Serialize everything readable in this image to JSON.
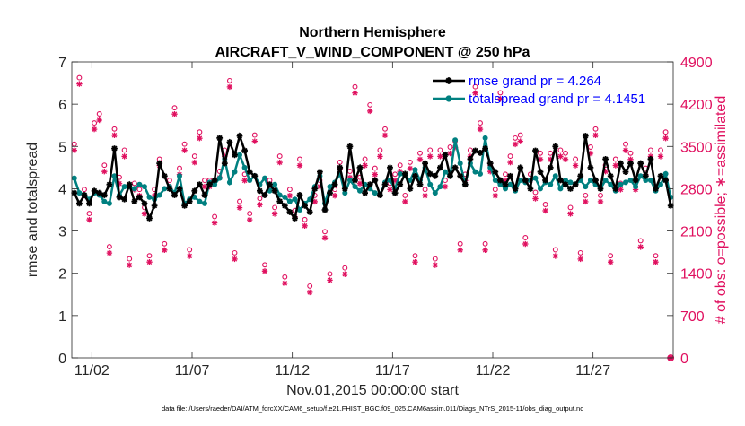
{
  "chart_data": {
    "type": "line",
    "title": "Northern Hemisphere",
    "subtitle": "AIRCRAFT_V_WIND_COMPONENT @ 250 hPa",
    "xlabel": "Nov.01,2015 00:00:00 start",
    "ylabel": "rmse and totalspread",
    "y2label": "# of obs: o=possible; ∗=assimilated",
    "footnote": "data file: /Users/raeder/DAI/ATM_forcXX/CAM6_setup/f.e21.FHIST_BGC.f09_025.CAM6assim.011/Diags_NTrS_2015-11/obs_diag_output.nc",
    "xlim": [
      0.5,
      30.5
    ],
    "xticks": [
      1.5,
      6.5,
      11.5,
      16.5,
      21.5,
      26.5
    ],
    "xtick_labels": [
      "11/02",
      "11/07",
      "11/12",
      "11/17",
      "11/22",
      "11/27"
    ],
    "ylim": [
      0,
      7
    ],
    "yticks": [
      0,
      1,
      2,
      3,
      4,
      5,
      6,
      7
    ],
    "y2lim": [
      0,
      4900
    ],
    "y2ticks": [
      0,
      700,
      1400,
      2100,
      2800,
      3500,
      4200,
      4900
    ],
    "colors": {
      "rmse": "#000000",
      "spread": "#008080",
      "obs": "#e0105f",
      "legend_text": "#0000ff"
    },
    "series": [
      {
        "name": "rmse grand pr = 4.264",
        "style": "black-line-star",
        "x": [
          0.625,
          0.875,
          1.125,
          1.375,
          1.625,
          1.875,
          2.125,
          2.375,
          2.625,
          2.875,
          3.125,
          3.375,
          3.625,
          3.875,
          4.125,
          4.375,
          4.625,
          4.875,
          5.125,
          5.375,
          5.625,
          5.875,
          6.125,
          6.375,
          6.625,
          6.875,
          7.125,
          7.375,
          7.625,
          7.875,
          8.125,
          8.375,
          8.625,
          8.875,
          9.125,
          9.375,
          9.625,
          9.875,
          10.125,
          10.375,
          10.625,
          10.875,
          11.125,
          11.375,
          11.625,
          11.875,
          12.125,
          12.375,
          12.625,
          12.875,
          13.125,
          13.375,
          13.625,
          13.875,
          14.125,
          14.375,
          14.625,
          14.875,
          15.125,
          15.375,
          15.625,
          15.875,
          16.125,
          16.375,
          16.625,
          16.875,
          17.125,
          17.375,
          17.625,
          17.875,
          18.125,
          18.375,
          18.625,
          18.875,
          19.125,
          19.375,
          19.625,
          19.875,
          20.125,
          20.375,
          20.625,
          20.875,
          21.125,
          21.375,
          21.625,
          21.875,
          22.125,
          22.375,
          22.625,
          22.875,
          23.125,
          23.375,
          23.625,
          23.875,
          24.125,
          24.375,
          24.625,
          24.875,
          25.125,
          25.375,
          25.625,
          25.875,
          26.125,
          26.375,
          26.625,
          26.875,
          27.125,
          27.375,
          27.625,
          27.875,
          28.125,
          28.375,
          28.625,
          28.875,
          29.125,
          29.375,
          29.625,
          29.875,
          30.125,
          30.375
        ],
        "values": [
          3.9,
          3.65,
          3.85,
          3.65,
          3.95,
          3.9,
          3.85,
          4.1,
          4.95,
          3.8,
          3.75,
          4.1,
          3.7,
          3.8,
          3.65,
          3.3,
          3.6,
          4.6,
          4.3,
          4.0,
          3.85,
          4.0,
          3.6,
          3.7,
          3.95,
          4.1,
          3.85,
          4.1,
          4.2,
          5.2,
          4.6,
          5.1,
          4.8,
          5.25,
          4.9,
          4.4,
          4.3,
          3.95,
          3.85,
          4.1,
          3.95,
          3.7,
          3.6,
          3.45,
          3.3,
          3.85,
          3.6,
          3.45,
          4.0,
          4.4,
          3.5,
          3.9,
          4.1,
          4.5,
          4.0,
          5.0,
          4.2,
          4.5,
          3.9,
          4.1,
          4.2,
          3.85,
          4.1,
          4.5,
          3.9,
          4.1,
          4.35,
          4.0,
          4.3,
          4.1,
          4.6,
          4.35,
          4.3,
          4.5,
          4.8,
          4.3,
          4.5,
          4.3,
          4.1,
          4.7,
          4.9,
          4.85,
          4.95,
          4.6,
          4.4,
          4.2,
          4.1,
          4.3,
          4.0,
          4.5,
          4.2,
          4.0,
          4.9,
          4.4,
          4.2,
          4.5,
          5.0,
          4.2,
          4.1,
          4.0,
          4.1,
          4.3,
          5.25,
          4.5,
          4.2,
          4.0,
          4.7,
          4.3,
          4.0,
          4.6,
          4.4,
          4.6,
          4.2,
          4.6,
          4.3,
          4.7,
          4.0,
          4.3,
          4.2,
          3.6
        ]
      },
      {
        "name": "totalspread grand pr = 4.1451",
        "style": "teal-line-dot",
        "x": [
          0.625,
          0.875,
          1.125,
          1.375,
          1.625,
          1.875,
          2.125,
          2.375,
          2.625,
          2.875,
          3.125,
          3.375,
          3.625,
          3.875,
          4.125,
          4.375,
          4.625,
          4.875,
          5.125,
          5.375,
          5.625,
          5.875,
          6.125,
          6.375,
          6.625,
          6.875,
          7.125,
          7.375,
          7.625,
          7.875,
          8.125,
          8.375,
          8.625,
          8.875,
          9.125,
          9.375,
          9.625,
          9.875,
          10.125,
          10.375,
          10.625,
          10.875,
          11.125,
          11.375,
          11.625,
          11.875,
          12.125,
          12.375,
          12.625,
          12.875,
          13.125,
          13.375,
          13.625,
          13.875,
          14.125,
          14.375,
          14.625,
          14.875,
          15.125,
          15.375,
          15.625,
          15.875,
          16.125,
          16.375,
          16.625,
          16.875,
          17.125,
          17.375,
          17.625,
          17.875,
          18.125,
          18.375,
          18.625,
          18.875,
          19.125,
          19.375,
          19.625,
          19.875,
          20.125,
          20.375,
          20.625,
          20.875,
          21.125,
          21.375,
          21.625,
          21.875,
          22.125,
          22.375,
          22.625,
          22.875,
          23.125,
          23.375,
          23.625,
          23.875,
          24.125,
          24.375,
          24.625,
          24.875,
          25.125,
          25.375,
          25.625,
          25.875,
          26.125,
          26.375,
          26.625,
          26.875,
          27.125,
          27.375,
          27.625,
          27.875,
          28.125,
          28.375,
          28.625,
          28.875,
          29.125,
          29.375,
          29.625,
          29.875,
          30.125,
          30.375
        ],
        "values": [
          4.25,
          3.9,
          3.85,
          3.75,
          3.9,
          3.85,
          3.7,
          3.65,
          4.3,
          3.85,
          4.05,
          4.05,
          4.0,
          4.1,
          4.05,
          3.8,
          3.75,
          3.85,
          4.0,
          4.05,
          3.9,
          4.3,
          3.65,
          3.75,
          3.8,
          3.7,
          3.65,
          4.15,
          4.1,
          4.25,
          4.7,
          4.15,
          4.4,
          4.8,
          4.5,
          4.2,
          4.3,
          4.1,
          4.25,
          3.95,
          4.1,
          3.85,
          3.8,
          3.7,
          3.75,
          3.5,
          3.65,
          3.75,
          4.05,
          4.3,
          3.65,
          4.05,
          4.15,
          4.35,
          3.9,
          4.2,
          4.05,
          3.95,
          4.1,
          4.0,
          3.9,
          3.85,
          4.15,
          4.2,
          4.0,
          4.35,
          4.3,
          4.2,
          4.45,
          4.2,
          4.5,
          4.1,
          3.9,
          4.05,
          4.4,
          4.3,
          5.15,
          4.6,
          4.1,
          4.6,
          4.4,
          4.35,
          5.2,
          4.5,
          4.2,
          4.1,
          4.0,
          4.1,
          3.95,
          4.2,
          4.15,
          4.2,
          4.25,
          4.0,
          4.15,
          4.1,
          4.3,
          4.0,
          4.2,
          4.15,
          4.1,
          4.2,
          4.05,
          4.2,
          4.1,
          4.0,
          4.2,
          4.1,
          3.95,
          4.1,
          4.15,
          4.2,
          4.05,
          4.3,
          4.2,
          4.2,
          3.95,
          4.1,
          4.35,
          3.8
        ]
      },
      {
        "name": "# of obs (possible = assimilated)",
        "axis": "right",
        "style": "magenta-circle-asterisk",
        "x": [
          0.625,
          0.875,
          1.125,
          1.375,
          1.625,
          1.875,
          2.125,
          2.375,
          2.625,
          2.875,
          3.125,
          3.375,
          3.625,
          3.875,
          4.125,
          4.375,
          4.625,
          4.875,
          5.125,
          5.375,
          5.625,
          5.875,
          6.125,
          6.375,
          6.625,
          6.875,
          7.125,
          7.375,
          7.625,
          7.875,
          8.125,
          8.375,
          8.625,
          8.875,
          9.125,
          9.375,
          9.625,
          9.875,
          10.125,
          10.375,
          10.625,
          10.875,
          11.125,
          11.375,
          11.625,
          11.875,
          12.125,
          12.375,
          12.625,
          12.875,
          13.125,
          13.375,
          13.625,
          13.875,
          14.125,
          14.375,
          14.625,
          14.875,
          15.125,
          15.375,
          15.625,
          15.875,
          16.125,
          16.375,
          16.625,
          16.875,
          17.125,
          17.375,
          17.625,
          17.875,
          18.125,
          18.375,
          18.625,
          18.875,
          19.125,
          19.375,
          19.625,
          19.875,
          20.125,
          20.375,
          20.625,
          20.875,
          21.125,
          21.375,
          21.625,
          21.875,
          22.125,
          22.375,
          22.625,
          22.875,
          23.125,
          23.375,
          23.625,
          23.875,
          24.125,
          24.375,
          24.625,
          24.875,
          25.125,
          25.375,
          25.625,
          25.875,
          26.125,
          26.375,
          26.625,
          26.875,
          27.125,
          27.375,
          27.625,
          27.875,
          28.125,
          28.375,
          28.625,
          28.875,
          29.125,
          29.375,
          29.625,
          29.875,
          30.125,
          30.375
        ],
        "values": [
          3450,
          4550,
          2700,
          2300,
          3800,
          3950,
          3100,
          1750,
          3700,
          2900,
          3350,
          1550,
          2800,
          2700,
          2400,
          1600,
          2700,
          3200,
          1800,
          2850,
          4050,
          3050,
          3450,
          1700,
          3250,
          3650,
          2850,
          2850,
          2250,
          3000,
          3350,
          4500,
          1650,
          2500,
          2950,
          2300,
          3600,
          2550,
          1450,
          2850,
          2400,
          3250,
          1250,
          2700,
          2350,
          3200,
          2200,
          1100,
          2600,
          2850,
          2000,
          1300,
          2700,
          3150,
          1400,
          3000,
          4400,
          2900,
          3200,
          4100,
          3050,
          3350,
          3700,
          2800,
          2950,
          3100,
          2600,
          3150,
          1600,
          3300,
          2700,
          3350,
          1550,
          3350,
          2850,
          3400,
          3500,
          1800,
          2950,
          3350,
          4400,
          3800,
          1800,
          3100,
          2700,
          4300,
          2950,
          3250,
          3550,
          3600,
          1900,
          2950,
          2650,
          3300,
          2450,
          3300,
          1700,
          3350,
          3300,
          2400,
          3200,
          1650,
          2600,
          3400,
          3700,
          2600,
          3100,
          1600,
          3200,
          2800,
          3450,
          3300,
          2800,
          1850,
          3050,
          3350,
          1600,
          3350,
          3650,
          0
        ]
      }
    ],
    "legend": [
      {
        "label": "rmse grand pr = 4.264",
        "style": "black-line-star"
      },
      {
        "label": "totalspread grand pr = 4.1451",
        "style": "teal-line-dot"
      }
    ],
    "legend_position": "top-right",
    "grid": false
  }
}
